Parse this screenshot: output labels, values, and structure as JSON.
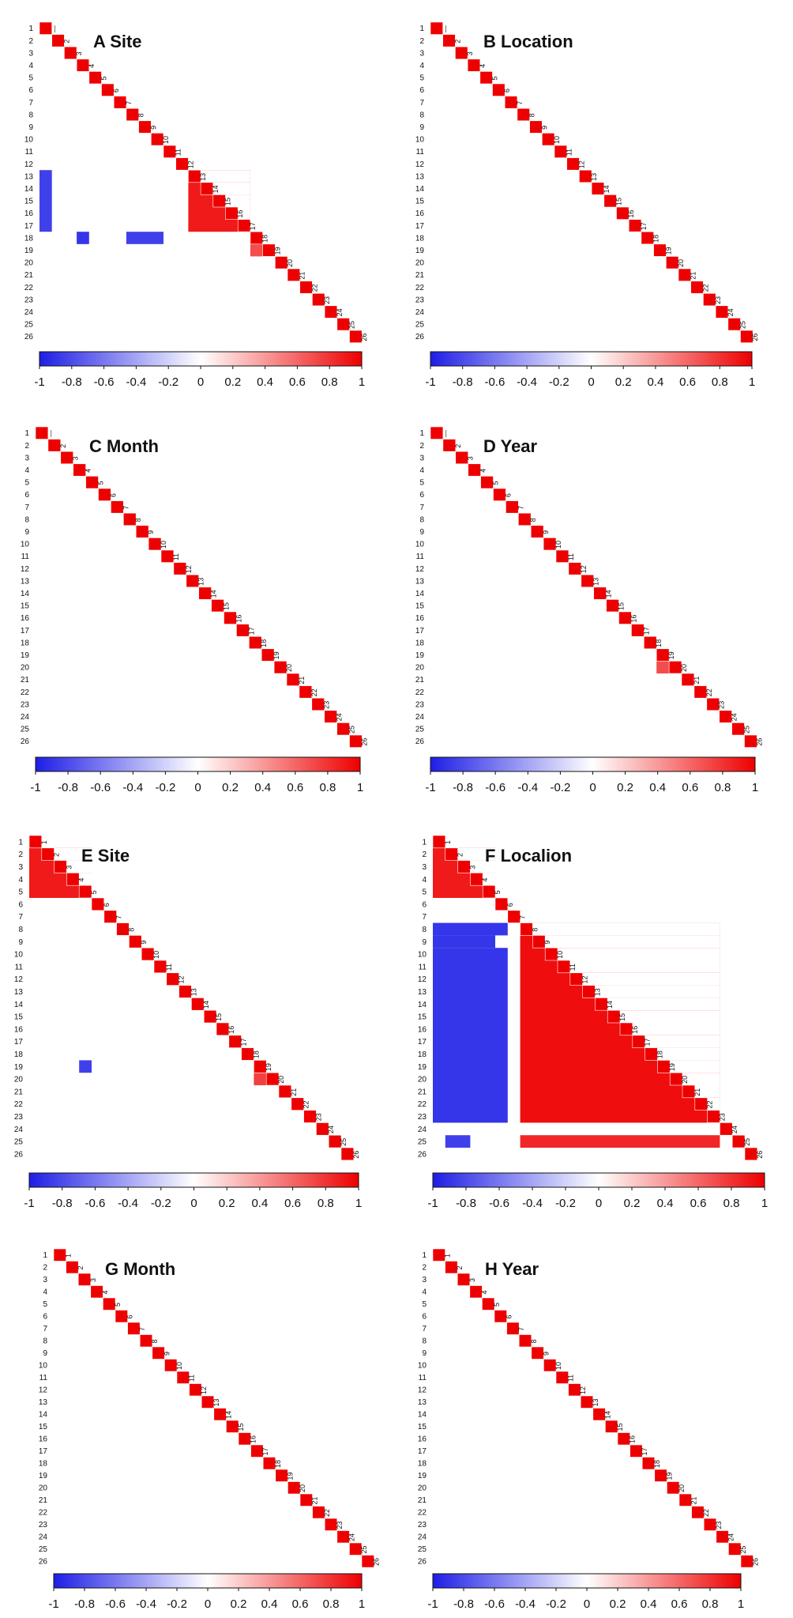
{
  "figure": {
    "chart_data": [
      {
        "panel": "A",
        "title": "Site",
        "type": "heatmap",
        "triangle": "lower",
        "n": 26,
        "row_labels": [
          "1",
          "2",
          "3",
          "4",
          "5",
          "6",
          "7",
          "8",
          "9",
          "10",
          "11",
          "12",
          "13",
          "14",
          "15",
          "16",
          "17",
          "18",
          "19",
          "20",
          "21",
          "22",
          "23",
          "24",
          "25",
          "26"
        ],
        "diagonal_labels": [
          "—",
          "2",
          "3",
          "4",
          "5",
          "6",
          "7",
          "8",
          "9",
          "10",
          "11",
          "12",
          "13",
          "14",
          "15",
          "16",
          "17",
          "18",
          "19",
          "20",
          "21",
          "22",
          "23",
          "24",
          "25",
          "26"
        ],
        "colorbar": {
          "ticks": [
            "-1",
            "-0.8",
            "-0.6",
            "-0.4",
            "-0.2",
            "0",
            "0.2",
            "0.4",
            "0.6",
            "0.8",
            "1"
          ],
          "range": [
            -1,
            1
          ],
          "low_color": "#1e1ee6",
          "mid_color": "#ffffff",
          "high_color": "#ee0000"
        },
        "blocks": [
          {
            "rows": [
              13,
              17
            ],
            "cols": [
              13,
              17
            ],
            "value": 0.9
          },
          {
            "rows": [
              19,
              19
            ],
            "cols": [
              18,
              18
            ],
            "value": 0.7
          },
          {
            "rows": [
              13,
              17
            ],
            "cols": [
              1,
              1
            ],
            "value": -0.85
          },
          {
            "rows": [
              18,
              18
            ],
            "cols": [
              4,
              4
            ],
            "value": -0.9
          },
          {
            "rows": [
              18,
              18
            ],
            "cols": [
              8,
              10
            ],
            "value": -0.85
          }
        ]
      },
      {
        "panel": "B",
        "title": "Location",
        "type": "heatmap",
        "triangle": "lower",
        "n": 26,
        "row_labels": [
          "1",
          "2",
          "3",
          "4",
          "5",
          "6",
          "7",
          "8",
          "9",
          "10",
          "11",
          "12",
          "13",
          "14",
          "15",
          "16",
          "17",
          "18",
          "19",
          "20",
          "21",
          "22",
          "23",
          "24",
          "25",
          "26"
        ],
        "diagonal_labels": [
          "—",
          "2",
          "3",
          "4",
          "5",
          "6",
          "7",
          "8",
          "9",
          "10",
          "11",
          "12",
          "13",
          "14",
          "15",
          "16",
          "17",
          "18",
          "19",
          "20",
          "21",
          "22",
          "23",
          "24",
          "25",
          "26"
        ],
        "colorbar": {
          "ticks": [
            "-1",
            "-0.8",
            "-0.6",
            "-0.4",
            "-0.2",
            "0",
            "0.2",
            "0.4",
            "0.6",
            "0.8",
            "1"
          ],
          "range": [
            -1,
            1
          ],
          "low_color": "#1e1ee6",
          "mid_color": "#ffffff",
          "high_color": "#ee0000"
        },
        "blocks": []
      },
      {
        "panel": "C",
        "title": "Month",
        "type": "heatmap",
        "triangle": "lower",
        "n": 26,
        "row_labels": [
          "1",
          "2",
          "3",
          "4",
          "5",
          "6",
          "7",
          "8",
          "9",
          "10",
          "11",
          "12",
          "13",
          "14",
          "15",
          "16",
          "17",
          "18",
          "19",
          "20",
          "21",
          "22",
          "23",
          "24",
          "25",
          "26"
        ],
        "diagonal_labels": [
          "—",
          "2",
          "3",
          "4",
          "5",
          "6",
          "7",
          "8",
          "9",
          "10",
          "11",
          "12",
          "13",
          "14",
          "15",
          "16",
          "17",
          "18",
          "19",
          "20",
          "21",
          "22",
          "23",
          "24",
          "25",
          "26"
        ],
        "colorbar": {
          "ticks": [
            "-1",
            "-0.8",
            "-0.6",
            "-0.4",
            "-0.2",
            "0",
            "0.2",
            "0.4",
            "0.6",
            "0.8",
            "1"
          ],
          "range": [
            -1,
            1
          ],
          "low_color": "#1e1ee6",
          "mid_color": "#ffffff",
          "high_color": "#ee0000"
        },
        "blocks": []
      },
      {
        "panel": "D",
        "title": "Year",
        "type": "heatmap",
        "triangle": "lower",
        "n": 26,
        "row_labels": [
          "1",
          "2",
          "3",
          "4",
          "5",
          "6",
          "7",
          "8",
          "9",
          "10",
          "11",
          "12",
          "13",
          "14",
          "15",
          "16",
          "17",
          "18",
          "19",
          "20",
          "21",
          "22",
          "23",
          "24",
          "25",
          "26"
        ],
        "diagonal_labels": [
          "—",
          "2",
          "3",
          "4",
          "5",
          "6",
          "7",
          "8",
          "9",
          "10",
          "11",
          "12",
          "13",
          "14",
          "15",
          "16",
          "17",
          "18",
          "19",
          "20",
          "21",
          "22",
          "23",
          "24",
          "25",
          "26"
        ],
        "colorbar": {
          "ticks": [
            "-1",
            "-0.8",
            "-0.6",
            "-0.4",
            "-0.2",
            "0",
            "0.2",
            "0.4",
            "0.6",
            "0.8",
            "1"
          ],
          "range": [
            -1,
            1
          ],
          "low_color": "#1e1ee6",
          "mid_color": "#ffffff",
          "high_color": "#ee0000"
        },
        "blocks": [
          {
            "rows": [
              20,
              20
            ],
            "cols": [
              19,
              19
            ],
            "value": 0.7
          }
        ]
      },
      {
        "panel": "E",
        "title": "Site",
        "type": "heatmap",
        "triangle": "lower",
        "n": 26,
        "row_labels": [
          "1",
          "2",
          "3",
          "4",
          "5",
          "6",
          "7",
          "8",
          "9",
          "10",
          "11",
          "12",
          "13",
          "14",
          "15",
          "16",
          "17",
          "18",
          "19",
          "20",
          "21",
          "22",
          "23",
          "24",
          "25",
          "26"
        ],
        "diagonal_labels": [
          "1",
          "2",
          "3",
          "4",
          "5",
          "6",
          "7",
          "8",
          "9",
          "10",
          "11",
          "12",
          "13",
          "14",
          "15",
          "16",
          "17",
          "18",
          "19",
          "20",
          "21",
          "22",
          "23",
          "24",
          "25",
          "26"
        ],
        "colorbar": {
          "ticks": [
            "-1",
            "-0.8",
            "-0.6",
            "-0.4",
            "-0.2",
            "0",
            "0.2",
            "0.4",
            "0.6",
            "0.8",
            "1"
          ],
          "range": [
            -1,
            1
          ],
          "low_color": "#1e1ee6",
          "mid_color": "#ffffff",
          "high_color": "#ee0000"
        },
        "blocks": [
          {
            "rows": [
              1,
              5
            ],
            "cols": [
              1,
              5
            ],
            "value": 0.9
          },
          {
            "rows": [
              20,
              20
            ],
            "cols": [
              19,
              19
            ],
            "value": 0.75
          },
          {
            "rows": [
              19,
              19
            ],
            "cols": [
              5,
              5
            ],
            "value": -0.85
          }
        ]
      },
      {
        "panel": "F",
        "title": "Localion",
        "type": "heatmap",
        "triangle": "lower",
        "n": 26,
        "row_labels": [
          "1",
          "2",
          "3",
          "4",
          "5",
          "6",
          "7",
          "8",
          "9",
          "10",
          "11",
          "12",
          "13",
          "14",
          "15",
          "16",
          "17",
          "18",
          "19",
          "20",
          "21",
          "22",
          "23",
          "24",
          "25",
          "26"
        ],
        "diagonal_labels": [
          "1",
          "2",
          "3",
          "4",
          "5",
          "6",
          "7",
          "8",
          "9",
          "10",
          "11",
          "12",
          "13",
          "14",
          "15",
          "16",
          "17",
          "18",
          "19",
          "20",
          "21",
          "22",
          "23",
          "24",
          "25",
          "26"
        ],
        "colorbar": {
          "ticks": [
            "-1",
            "-0.8",
            "-0.6",
            "-0.4",
            "-0.2",
            "0",
            "0.2",
            "0.4",
            "0.6",
            "0.8",
            "1"
          ],
          "range": [
            -1,
            1
          ],
          "low_color": "#1e1ee6",
          "mid_color": "#ffffff",
          "high_color": "#ee0000"
        },
        "blocks": [
          {
            "rows": [
              1,
              5
            ],
            "cols": [
              1,
              5
            ],
            "value": 0.9
          },
          {
            "rows": [
              8,
              23
            ],
            "cols": [
              8,
              23
            ],
            "value": 0.95
          },
          {
            "rows": [
              8,
              8
            ],
            "cols": [
              1,
              6
            ],
            "value": -0.9
          },
          {
            "rows": [
              9,
              9
            ],
            "cols": [
              1,
              5
            ],
            "value": -0.9
          },
          {
            "rows": [
              10,
              23
            ],
            "cols": [
              1,
              6
            ],
            "value": -0.9
          },
          {
            "rows": [
              25,
              25
            ],
            "cols": [
              2,
              3
            ],
            "value": -0.85
          },
          {
            "rows": [
              25,
              25
            ],
            "cols": [
              8,
              23
            ],
            "value": 0.85
          }
        ]
      },
      {
        "panel": "G",
        "title": "Month",
        "type": "heatmap",
        "triangle": "lower",
        "n": 26,
        "row_labels": [
          "1",
          "2",
          "3",
          "4",
          "5",
          "6",
          "7",
          "8",
          "9",
          "10",
          "11",
          "12",
          "13",
          "14",
          "15",
          "16",
          "17",
          "18",
          "19",
          "20",
          "21",
          "22",
          "23",
          "24",
          "25",
          "26"
        ],
        "diagonal_labels": [
          "1",
          "2",
          "3",
          "4",
          "5",
          "6",
          "7",
          "8",
          "9",
          "10",
          "11",
          "12",
          "13",
          "14",
          "15",
          "16",
          "17",
          "18",
          "19",
          "20",
          "21",
          "22",
          "23",
          "24",
          "25",
          "26"
        ],
        "colorbar": {
          "ticks": [
            "-1",
            "-0.8",
            "-0.6",
            "-0.4",
            "-0.2",
            "0",
            "0.2",
            "0.4",
            "0.6",
            "0.8",
            "1"
          ],
          "range": [
            -1,
            1
          ],
          "low_color": "#1e1ee6",
          "mid_color": "#ffffff",
          "high_color": "#ee0000"
        },
        "blocks": []
      },
      {
        "panel": "H",
        "title": "Year",
        "type": "heatmap",
        "triangle": "lower",
        "n": 26,
        "row_labels": [
          "1",
          "2",
          "3",
          "4",
          "5",
          "6",
          "7",
          "8",
          "9",
          "10",
          "11",
          "12",
          "13",
          "14",
          "15",
          "16",
          "17",
          "18",
          "19",
          "20",
          "21",
          "22",
          "23",
          "24",
          "25",
          "26"
        ],
        "diagonal_labels": [
          "1",
          "2",
          "3",
          "4",
          "5",
          "6",
          "7",
          "8",
          "9",
          "10",
          "11",
          "12",
          "13",
          "14",
          "15",
          "16",
          "17",
          "18",
          "19",
          "20",
          "21",
          "22",
          "23",
          "24",
          "25",
          "26"
        ],
        "colorbar": {
          "ticks": [
            "-1",
            "-0.8",
            "-0.6",
            "-0.4",
            "-0.2",
            "0",
            "0.2",
            "0.4",
            "0.6",
            "0.8",
            "1"
          ],
          "range": [
            -1,
            1
          ],
          "low_color": "#1e1ee6",
          "mid_color": "#ffffff",
          "high_color": "#ee0000"
        },
        "blocks": []
      }
    ]
  }
}
